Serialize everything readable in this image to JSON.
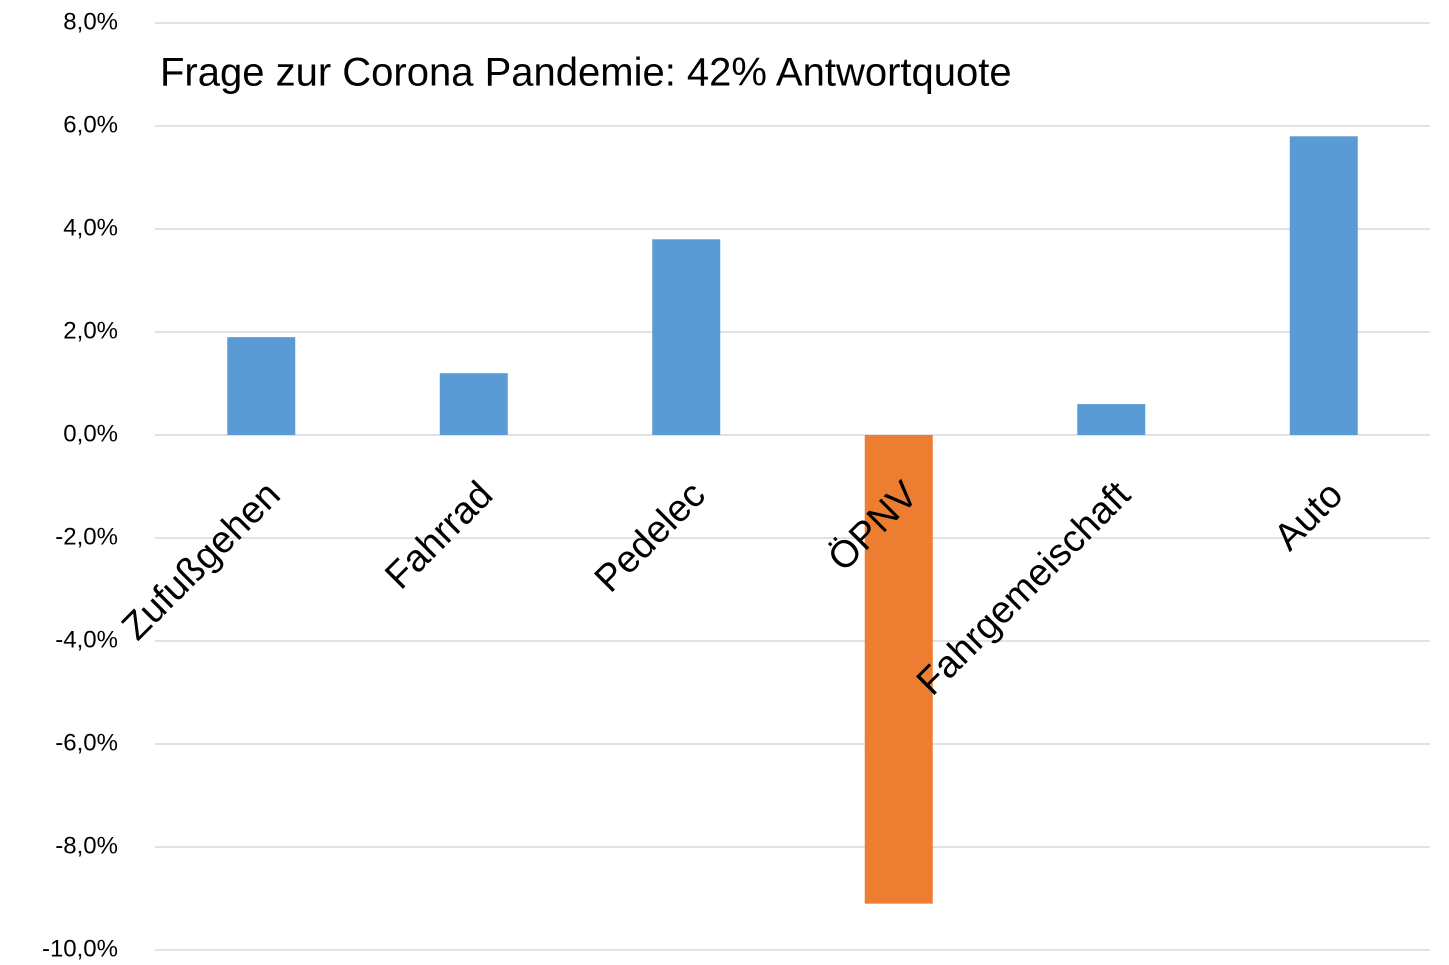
{
  "chart_data": {
    "type": "bar",
    "title": "Frage zur Corona Pandemie: 42% Antwortquote",
    "categories": [
      "Zufußgehen",
      "Fahrrad",
      "Pedelec",
      "ÖPNV",
      "Fahrgemeischaft",
      "Auto"
    ],
    "values": [
      1.9,
      1.2,
      3.8,
      -9.1,
      0.6,
      5.8
    ],
    "colors": [
      "#5b9bd5",
      "#5b9bd5",
      "#5b9bd5",
      "#ed7d31",
      "#5b9bd5",
      "#5b9bd5"
    ],
    "ylim": [
      -10,
      8
    ],
    "yticks": [
      {
        "value": -10,
        "label": "-10,0%"
      },
      {
        "value": -8,
        "label": "-8,0%"
      },
      {
        "value": -6,
        "label": "-6,0%"
      },
      {
        "value": -4,
        "label": "-4,0%"
      },
      {
        "value": -2,
        "label": "-2,0%"
      },
      {
        "value": 0,
        "label": "0,0%"
      },
      {
        "value": 2,
        "label": "2,0%"
      },
      {
        "value": 4,
        "label": "4,0%"
      },
      {
        "value": 6,
        "label": "6,0%"
      },
      {
        "value": 8,
        "label": "8,0%"
      }
    ],
    "grid": true
  }
}
